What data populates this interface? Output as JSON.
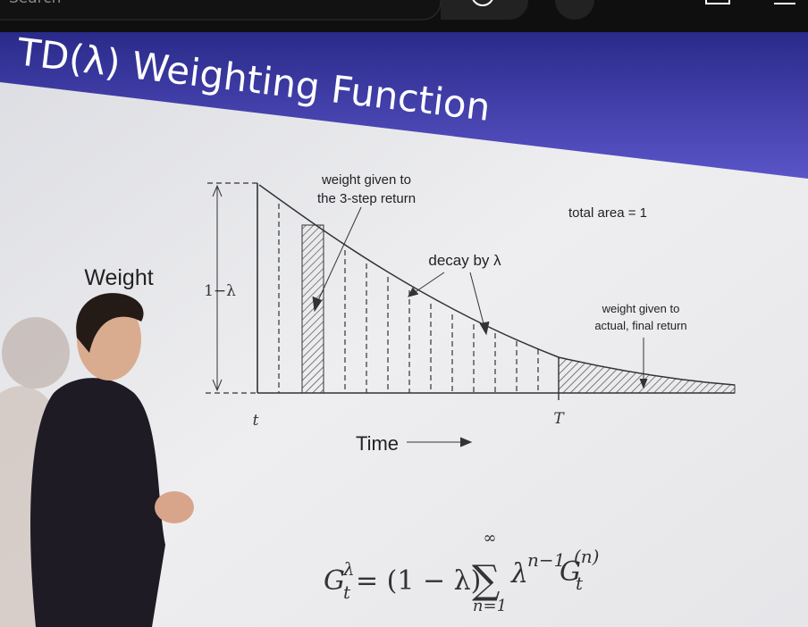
{
  "header": {
    "search_placeholder": "Search"
  },
  "slide": {
    "title": "TD(λ) Weighting Function",
    "y_label": "Weight",
    "y_span": "1−λ",
    "annotations": [
      {
        "lines": [
          "weight given to",
          "the 3-step return"
        ]
      },
      {
        "lines": [
          "total area = 1"
        ]
      },
      {
        "lines": [
          "decay by λ"
        ]
      },
      {
        "lines": [
          "weight given to",
          "actual, final return"
        ]
      }
    ],
    "x_start": "t",
    "x_end": "T",
    "x_label": "Time",
    "formula": {
      "lhs": "G",
      "lhs_sub": "t",
      "lhs_sup": "λ",
      "factor": " = (1 − λ)",
      "sum": "∑",
      "sum_top": "∞",
      "sum_bottom": "n=1",
      "term": "λ",
      "term_sup": "n−1",
      "ret": "G",
      "ret_sub": "t",
      "ret_sup": "(n)"
    }
  }
}
